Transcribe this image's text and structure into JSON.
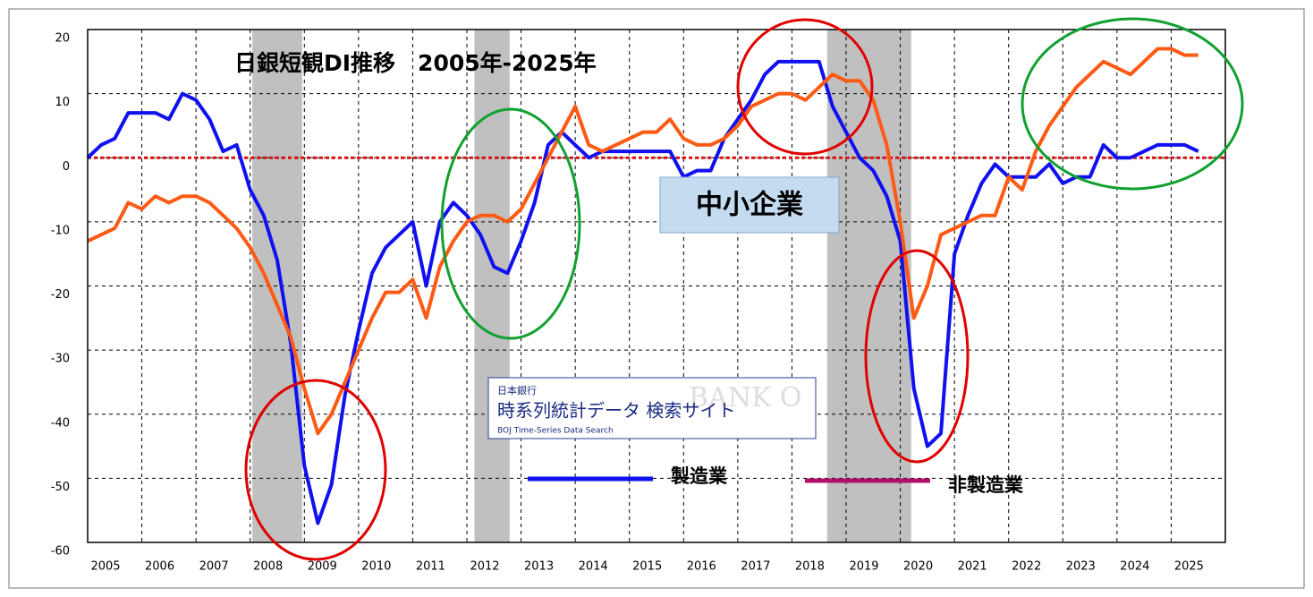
{
  "chart_data": {
    "type": "line",
    "title": "日銀短観DI推移　2005年-2025年",
    "label_box": "中小企業",
    "logo": {
      "line1": "日本銀行",
      "line2": "時系列統計データ 検索サイト",
      "line3": "BOJ Time-Series Data Search",
      "watermark": "BANK O"
    },
    "x": [
      2005,
      2005.25,
      2005.5,
      2005.75,
      2006,
      2006.25,
      2006.5,
      2006.75,
      2007,
      2007.25,
      2007.5,
      2007.75,
      2008,
      2008.25,
      2008.5,
      2008.75,
      2009,
      2009.25,
      2009.5,
      2009.75,
      2010,
      2010.25,
      2010.5,
      2010.75,
      2011,
      2011.25,
      2011.5,
      2011.75,
      2012,
      2012.25,
      2012.5,
      2012.75,
      2013,
      2013.25,
      2013.5,
      2013.75,
      2014,
      2014.25,
      2014.5,
      2014.75,
      2015,
      2015.25,
      2015.5,
      2015.75,
      2016,
      2016.25,
      2016.5,
      2016.75,
      2017,
      2017.25,
      2017.5,
      2017.75,
      2018,
      2018.25,
      2018.5,
      2018.75,
      2019,
      2019.25,
      2019.5,
      2019.75,
      2020,
      2020.25,
      2020.5,
      2020.75,
      2021,
      2021.25,
      2021.5,
      2021.75,
      2022,
      2022.25,
      2022.5,
      2022.75,
      2023,
      2023.25,
      2023.5,
      2023.75,
      2024,
      2024.25,
      2024.5,
      2024.75,
      2025,
      2025.25,
      2025.5
    ],
    "series": [
      {
        "name": "製造業",
        "color": "#1010f0",
        "values": [
          0,
          2,
          3,
          7,
          7,
          7,
          6,
          10,
          9,
          6,
          1,
          2,
          -5,
          -9,
          -16,
          -29,
          -48,
          -57,
          -51,
          -37,
          -27,
          -18,
          -14,
          -12,
          -10,
          -20,
          -10,
          -7,
          -9,
          -12,
          -17,
          -18,
          -13,
          -7,
          2,
          4,
          2,
          0,
          1,
          1,
          1,
          1,
          1,
          1,
          -3,
          -2,
          -2,
          3,
          6,
          9,
          13,
          15,
          15,
          15,
          15,
          8,
          4,
          0,
          -2,
          -6,
          -13,
          -36,
          -45,
          -43,
          -15,
          -9,
          -4,
          -1,
          -3,
          -3,
          -3,
          -1,
          -4,
          -3,
          -3,
          2,
          0,
          0,
          1,
          2,
          2,
          2,
          1
        ]
      },
      {
        "name": "非製造業",
        "color": "#ff5a14",
        "legend_color": "#b0106a",
        "values": [
          -13,
          -12,
          -11,
          -7,
          -8,
          -6,
          -7,
          -6,
          -6,
          -7,
          -9,
          -11,
          -14,
          -18,
          -23,
          -28,
          -36,
          -43,
          -40,
          -35,
          -30,
          -25,
          -21,
          -21,
          -19,
          -25,
          -17,
          -13,
          -10,
          -9,
          -9,
          -10,
          -8,
          -4,
          0,
          4,
          8,
          2,
          1,
          2,
          3,
          4,
          4,
          6,
          3,
          2,
          2,
          3,
          5,
          8,
          9,
          10,
          10,
          9,
          11,
          13,
          12,
          12,
          9,
          2,
          -10,
          -25,
          -20,
          -12,
          -11,
          -10,
          -9,
          -9,
          -3,
          -5,
          1,
          5,
          8,
          11,
          13,
          15,
          14,
          13,
          15,
          17,
          17,
          16,
          16
        ]
      }
    ],
    "xlim": [
      2005,
      2026
    ],
    "xticks": [
      2005,
      2006,
      2007,
      2008,
      2009,
      2010,
      2011,
      2012,
      2013,
      2014,
      2015,
      2016,
      2017,
      2018,
      2019,
      2020,
      2021,
      2022,
      2023,
      2024,
      2025
    ],
    "ylim": [
      -60,
      20
    ],
    "yticks": [
      -60,
      -50,
      -40,
      -30,
      -20,
      -10,
      0,
      10,
      20
    ],
    "grid": true,
    "reference_line": 0,
    "reference_color": "#e01010",
    "shaded_ranges": [
      [
        2008.04,
        2008.96
      ],
      [
        2012.14,
        2012.79
      ],
      [
        2018.65,
        2020.2
      ]
    ],
    "shade_color": "#c0c0c0"
  }
}
